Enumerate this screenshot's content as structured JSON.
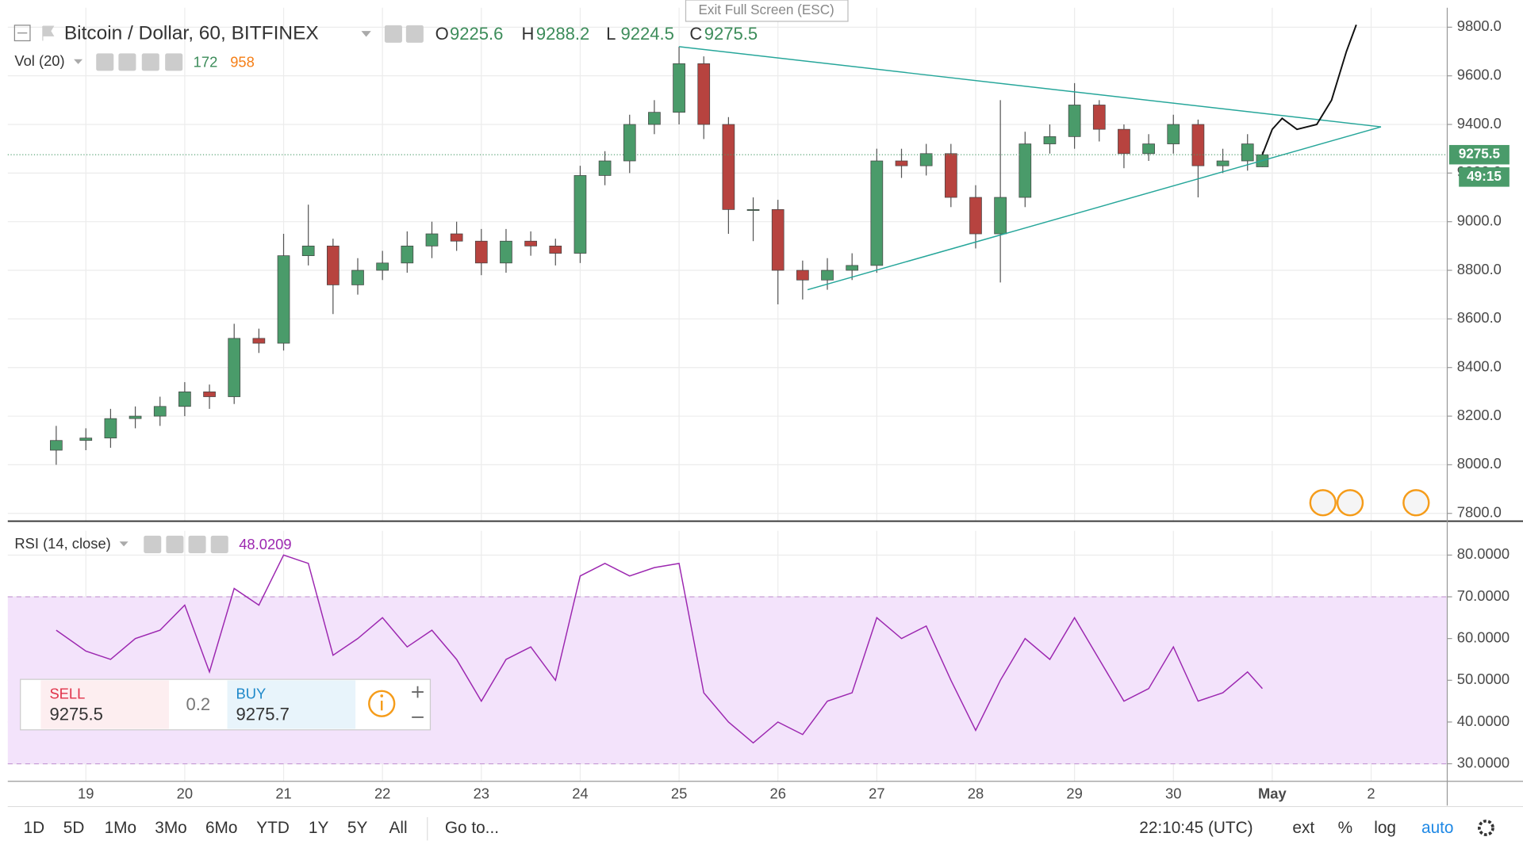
{
  "ui": {
    "exit_fullscreen": "Exit Full Screen (ESC)",
    "ohlc_labels": [
      "O",
      "H",
      "L",
      "C"
    ],
    "vol_name": "Vol (20)",
    "vol_values": [
      172,
      958
    ],
    "rsi_name": "RSI (14, close)",
    "rsi_value": "48.0209",
    "countdown": "49:15",
    "widget": {
      "sell_label": "SELL",
      "sell_price": 9275.5,
      "spread": 0.2,
      "buy_label": "BUY",
      "buy_price": 9275.7
    },
    "timeframes": [
      "1D",
      "5D",
      "1Mo",
      "3Mo",
      "6Mo",
      "YTD",
      "1Y",
      "5Y",
      "All"
    ],
    "goto": "Go to...",
    "clock": "22:10:45 (UTC)",
    "axis_options": [
      "ext",
      "%",
      "log",
      "auto"
    ]
  },
  "chart_data": [
    {
      "type": "candlestick",
      "title": "Bitcoin / Dollar, 60, BITFINEX",
      "up_color": "#4a9b6a",
      "down_color": "#b7433f",
      "x": [
        18.7,
        19,
        19.25,
        19.5,
        19.75,
        20,
        20.25,
        20.5,
        20.75,
        21,
        21.25,
        21.5,
        21.75,
        22,
        22.25,
        22.5,
        22.75,
        23,
        23.25,
        23.5,
        23.75,
        24,
        24.25,
        24.5,
        24.75,
        25,
        25.25,
        25.5,
        25.75,
        26,
        26.25,
        26.5,
        26.75,
        27,
        27.25,
        27.5,
        27.75,
        28,
        28.25,
        28.5,
        28.75,
        29,
        29.25,
        29.5,
        29.75,
        30,
        30.25,
        30.5,
        30.75,
        30.9
      ],
      "open": [
        8060,
        8100,
        8110,
        8190,
        8200,
        8240,
        8300,
        8280,
        8520,
        8500,
        8860,
        8900,
        8740,
        8800,
        8830,
        8900,
        8950,
        8920,
        8830,
        8920,
        8900,
        8870,
        9190,
        9250,
        9400,
        9450,
        9650,
        9400,
        9050,
        9050,
        8800,
        8760,
        8800,
        8820,
        9250,
        9230,
        9280,
        9100,
        8950,
        9100,
        9320,
        9350,
        9480,
        9380,
        9280,
        9320,
        9400,
        9230,
        9250,
        9225.6
      ],
      "high": [
        8160,
        8150,
        8230,
        8240,
        8280,
        8340,
        8330,
        8580,
        8560,
        8950,
        9070,
        8930,
        8850,
        8880,
        8960,
        9000,
        9000,
        8970,
        8970,
        8960,
        8930,
        9230,
        9290,
        9440,
        9500,
        9720,
        9680,
        9430,
        9100,
        9090,
        8840,
        8850,
        8870,
        9300,
        9300,
        9320,
        9320,
        9150,
        9500,
        9370,
        9400,
        9570,
        9500,
        9400,
        9360,
        9440,
        9420,
        9300,
        9360,
        9288.2
      ],
      "low": [
        8000,
        8060,
        8070,
        8150,
        8160,
        8200,
        8230,
        8250,
        8460,
        8470,
        8820,
        8620,
        8700,
        8760,
        8790,
        8850,
        8880,
        8780,
        8790,
        8860,
        8820,
        8830,
        9150,
        9200,
        9360,
        9400,
        9340,
        8950,
        8920,
        8660,
        8680,
        8720,
        8760,
        8790,
        9180,
        9190,
        9060,
        8890,
        8750,
        9060,
        9280,
        9300,
        9330,
        9220,
        9250,
        9280,
        9100,
        9200,
        9210,
        9224.5
      ],
      "close": [
        8100,
        8110,
        8190,
        8200,
        8240,
        8300,
        8280,
        8520,
        8500,
        8860,
        8900,
        8740,
        8800,
        8830,
        8900,
        8950,
        8920,
        8830,
        8920,
        8900,
        8870,
        9190,
        9250,
        9400,
        9450,
        9650,
        9400,
        9050,
        9050,
        8800,
        8760,
        8800,
        8820,
        9250,
        9230,
        9280,
        9100,
        8950,
        9100,
        9320,
        9350,
        9480,
        9380,
        9280,
        9320,
        9400,
        9230,
        9250,
        9320,
        9275.5
      ],
      "xlim": [
        18.21,
        32.77
      ],
      "xticks": [
        19,
        20,
        21,
        22,
        23,
        24,
        25,
        26,
        27,
        28,
        29,
        30,
        {
          "value": 31,
          "label": "May"
        },
        {
          "value": 32,
          "label": "2"
        }
      ],
      "ylim": [
        7768,
        9880
      ],
      "yticks": [
        {
          "value": 7800,
          "label": "7800.0"
        },
        {
          "value": 8000,
          "label": "8000.0"
        },
        {
          "value": 8200,
          "label": "8200.0"
        },
        {
          "value": 8400,
          "label": "8400.0"
        },
        {
          "value": 8600,
          "label": "8600.0"
        },
        {
          "value": 8800,
          "label": "8800.0"
        },
        {
          "value": 9000,
          "label": "9000.0"
        },
        {
          "value": 9200,
          "label": "9200.0"
        },
        {
          "value": 9400,
          "label": "9400.0"
        },
        {
          "value": 9600,
          "label": "9600.0"
        },
        {
          "value": 9800,
          "label": "9800.0"
        }
      ],
      "grid": true,
      "trendlines": [
        {
          "x": [
            26.3,
            32.1
          ],
          "y": [
            8720,
            9390
          ],
          "color": "#26a69a"
        },
        {
          "x": [
            25.0,
            32.1
          ],
          "y": [
            9720,
            9390
          ],
          "color": "#26a69a"
        }
      ],
      "projection": {
        "x": [
          30.9,
          31.0,
          31.1,
          31.25,
          31.45,
          31.6,
          31.75,
          31.85
        ],
        "y": [
          9275.5,
          9380,
          9425,
          9380,
          9400,
          9500,
          9700,
          9810
        ],
        "color": "#111111"
      }
    },
    {
      "type": "line",
      "color": "#9c27b0",
      "band": [
        30,
        70
      ],
      "band_color": "#f3e3fb",
      "values": [
        62,
        57,
        55,
        60,
        62,
        68,
        52,
        72,
        68,
        80,
        78,
        56,
        60,
        65,
        58,
        62,
        55,
        45,
        55,
        58,
        50,
        75,
        78,
        75,
        77,
        78,
        47,
        40,
        35,
        40,
        37,
        45,
        47,
        65,
        60,
        63,
        50,
        38,
        50,
        60,
        55,
        65,
        55,
        45,
        48,
        58,
        45,
        47,
        52,
        48.0209
      ],
      "ylim": [
        25.8,
        85.8
      ],
      "yticks": [
        {
          "value": 30,
          "label": "30.0000"
        },
        {
          "value": 40,
          "label": "40.0000"
        },
        {
          "value": 50,
          "label": "50.0000"
        },
        {
          "value": 60,
          "label": "60.0000"
        },
        {
          "value": 70,
          "label": "70.0000"
        },
        {
          "value": 80,
          "label": "80.0000"
        }
      ]
    }
  ]
}
